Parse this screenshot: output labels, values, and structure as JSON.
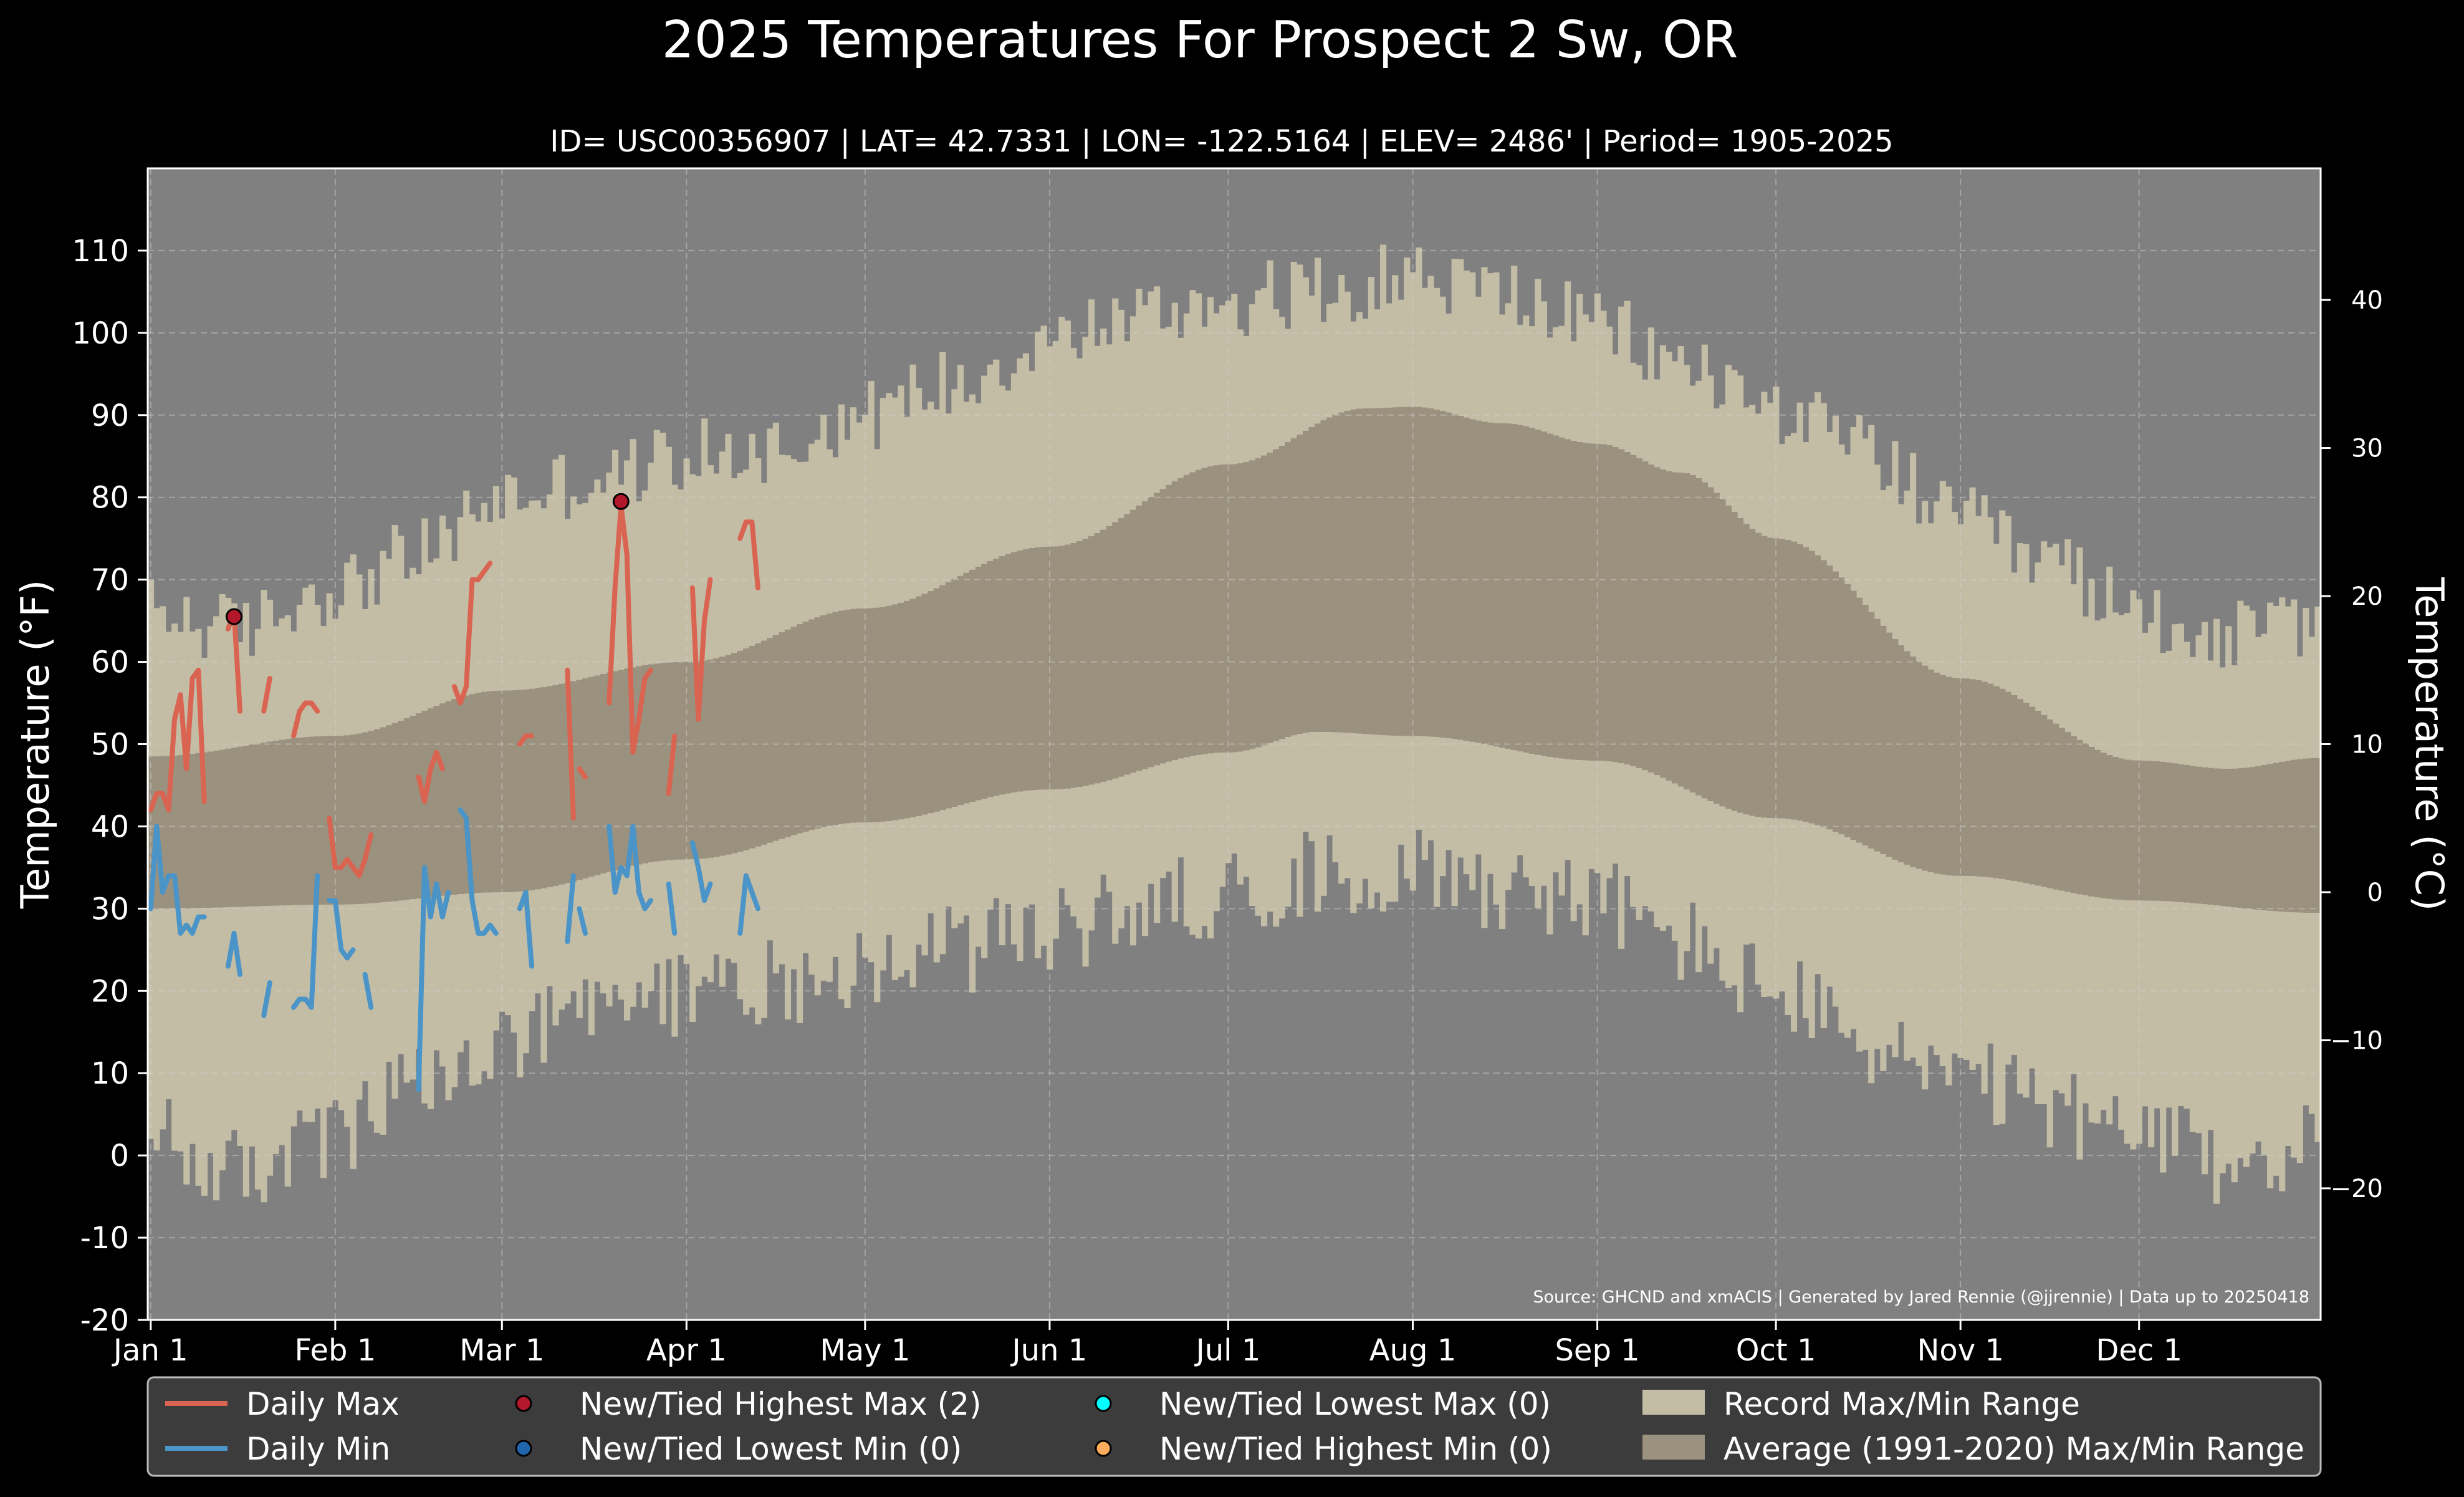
{
  "chart_data": {
    "type": "line",
    "title": "2025 Temperatures For Prospect 2 Sw, OR",
    "subtitle": "ID= USC00356907 | LAT= 42.7331 | LON= -122.5164 | ELEV= 2486' | Period= 1905-2025",
    "ylabel": "Temperature ($^\\circ$F)",
    "ylabel_display": "Temperature (°F)",
    "ylabel_right": "Temperature (°C)",
    "ylim": [
      -20,
      120
    ],
    "y_ticks": [
      -20,
      -10,
      0,
      10,
      20,
      30,
      40,
      50,
      60,
      70,
      80,
      90,
      100,
      110
    ],
    "y_ticks_right": [
      -20,
      -10,
      0,
      10,
      20,
      30,
      40
    ],
    "xlim_days": [
      0.5,
      365.5
    ],
    "x_ticks": [
      {
        "label": "Jan 1",
        "day": 1
      },
      {
        "label": "Feb 1",
        "day": 32
      },
      {
        "label": "Mar 1",
        "day": 60
      },
      {
        "label": "Apr 1",
        "day": 91
      },
      {
        "label": "May 1",
        "day": 121
      },
      {
        "label": "Jun 1",
        "day": 152
      },
      {
        "label": "Jul 1",
        "day": 182
      },
      {
        "label": "Aug 1",
        "day": 213
      },
      {
        "label": "Sep 1",
        "day": 244
      },
      {
        "label": "Oct 1",
        "day": 274
      },
      {
        "label": "Nov 1",
        "day": 305
      },
      {
        "label": "Dec 1",
        "day": 335
      }
    ],
    "grid": true,
    "source_text": "Source: GHCND and xmACIS | Generated by Jared Rennie (@jjrennie) | Data up to 20250418",
    "legend_position": "bottom",
    "colors": {
      "background": "#000000",
      "plot_background": "#808080",
      "record_range": "#c4bda6",
      "average_range": "#9b917f",
      "daily_max": "#d96452",
      "daily_min": "#4a94c8",
      "record_high_max": "#b3182a",
      "record_low_min": "#2166ac",
      "record_low_max": "#00ffff",
      "record_high_min": "#ffad5c",
      "legend_bg": "#3c3c3c"
    },
    "legend": [
      {
        "label": "Daily Max",
        "kind": "line",
        "color": "#d96452"
      },
      {
        "label": "Daily Min",
        "kind": "line",
        "color": "#4a94c8"
      },
      {
        "label": "New/Tied Highest Max (2)",
        "kind": "dot",
        "color": "#b3182a"
      },
      {
        "label": "New/Tied Lowest Min (0)",
        "kind": "dot",
        "color": "#2166ac"
      },
      {
        "label": "New/Tied Lowest Max (0)",
        "kind": "dot",
        "color": "#00ffff"
      },
      {
        "label": "New/Tied Highest Min (0)",
        "kind": "dot",
        "color": "#ffad5c"
      },
      {
        "label": "Record Max/Min Range",
        "kind": "patch",
        "color": "#c4bda6"
      },
      {
        "label": "Average (1991-2020) Max/Min Range",
        "kind": "patch",
        "color": "#9b917f"
      }
    ],
    "record_max_anchors": [
      [
        1,
        66
      ],
      [
        15,
        64
      ],
      [
        32,
        69
      ],
      [
        46,
        73
      ],
      [
        60,
        80
      ],
      [
        75,
        82
      ],
      [
        91,
        85
      ],
      [
        105,
        86
      ],
      [
        121,
        90
      ],
      [
        135,
        94
      ],
      [
        152,
        99
      ],
      [
        166,
        102
      ],
      [
        182,
        104
      ],
      [
        196,
        105
      ],
      [
        213,
        107
      ],
      [
        227,
        105
      ],
      [
        244,
        101
      ],
      [
        258,
        96
      ],
      [
        274,
        91
      ],
      [
        288,
        86
      ],
      [
        305,
        77
      ],
      [
        319,
        72
      ],
      [
        335,
        66
      ],
      [
        350,
        63
      ],
      [
        365,
        65
      ]
    ],
    "record_min_anchors": [
      [
        1,
        2
      ],
      [
        15,
        -2
      ],
      [
        32,
        2
      ],
      [
        46,
        8
      ],
      [
        60,
        13
      ],
      [
        75,
        17
      ],
      [
        91,
        20
      ],
      [
        105,
        21
      ],
      [
        121,
        23
      ],
      [
        135,
        25
      ],
      [
        152,
        27
      ],
      [
        166,
        30
      ],
      [
        182,
        32
      ],
      [
        196,
        34
      ],
      [
        213,
        35
      ],
      [
        227,
        33
      ],
      [
        244,
        31
      ],
      [
        258,
        26
      ],
      [
        274,
        20
      ],
      [
        288,
        14
      ],
      [
        305,
        9
      ],
      [
        319,
        6
      ],
      [
        335,
        2
      ],
      [
        350,
        -1
      ],
      [
        365,
        1
      ]
    ],
    "average_max": [
      [
        1,
        48.5
      ],
      [
        32,
        51
      ],
      [
        60,
        56.5
      ],
      [
        91,
        60
      ],
      [
        121,
        66.5
      ],
      [
        152,
        74
      ],
      [
        182,
        84
      ],
      [
        205,
        90.8
      ],
      [
        213,
        91
      ],
      [
        228,
        89
      ],
      [
        244,
        86.5
      ],
      [
        258,
        83
      ],
      [
        274,
        75
      ],
      [
        305,
        58
      ],
      [
        335,
        48
      ],
      [
        350,
        47
      ],
      [
        365,
        48.3
      ]
    ],
    "average_min": [
      [
        1,
        30
      ],
      [
        32,
        30.5
      ],
      [
        60,
        32
      ],
      [
        91,
        36
      ],
      [
        121,
        40.5
      ],
      [
        152,
        44.5
      ],
      [
        182,
        49
      ],
      [
        197,
        51.5
      ],
      [
        213,
        51
      ],
      [
        244,
        48
      ],
      [
        274,
        41
      ],
      [
        305,
        34
      ],
      [
        335,
        31
      ],
      [
        365,
        29.5
      ]
    ],
    "daily_max": [
      [
        [
          1,
          42
        ],
        [
          2,
          44
        ],
        [
          3,
          44
        ],
        [
          4,
          42
        ],
        [
          5,
          53
        ],
        [
          6,
          56
        ],
        [
          7,
          47
        ],
        [
          8,
          58
        ],
        [
          9,
          59
        ],
        [
          10,
          43
        ]
      ],
      [
        [
          14,
          64
        ],
        [
          15,
          66
        ],
        [
          16,
          54
        ]
      ],
      [
        [
          20,
          54
        ],
        [
          21,
          58
        ]
      ],
      [
        [
          25,
          51
        ],
        [
          26,
          54
        ],
        [
          27,
          55
        ],
        [
          28,
          55
        ],
        [
          29,
          54
        ]
      ],
      [
        [
          31,
          41
        ],
        [
          32,
          35
        ],
        [
          33,
          35
        ],
        [
          34,
          36
        ],
        [
          35,
          35
        ],
        [
          36,
          34
        ],
        [
          37,
          36
        ],
        [
          38,
          39
        ]
      ],
      [
        [
          46,
          46
        ],
        [
          47,
          43
        ],
        [
          48,
          47
        ],
        [
          49,
          49
        ],
        [
          50,
          47
        ]
      ],
      [
        [
          52,
          57
        ],
        [
          53,
          55
        ],
        [
          54,
          57
        ],
        [
          55,
          70
        ],
        [
          56,
          70
        ],
        [
          57,
          71
        ],
        [
          58,
          72
        ]
      ],
      [
        [
          63,
          50
        ],
        [
          64,
          51
        ],
        [
          65,
          51
        ]
      ],
      [
        [
          71,
          59
        ],
        [
          72,
          41
        ]
      ],
      [
        [
          73,
          47
        ],
        [
          74,
          46
        ]
      ],
      [
        [
          78,
          55
        ],
        [
          79,
          69
        ],
        [
          80,
          79
        ],
        [
          81,
          73
        ],
        [
          82,
          49
        ],
        [
          83,
          53
        ],
        [
          84,
          58
        ],
        [
          85,
          59
        ]
      ],
      [
        [
          88,
          44
        ],
        [
          89,
          51
        ]
      ],
      [
        [
          92,
          69
        ],
        [
          93,
          53
        ],
        [
          94,
          65
        ],
        [
          95,
          70
        ]
      ],
      [
        [
          100,
          75
        ],
        [
          101,
          77
        ],
        [
          102,
          77
        ],
        [
          103,
          69
        ]
      ]
    ],
    "daily_min": [
      [
        [
          1,
          30
        ],
        [
          2,
          40
        ],
        [
          3,
          32
        ],
        [
          4,
          34
        ],
        [
          5,
          34
        ],
        [
          6,
          27
        ],
        [
          7,
          28
        ],
        [
          8,
          27
        ],
        [
          9,
          29
        ],
        [
          10,
          29
        ]
      ],
      [
        [
          14,
          23
        ],
        [
          15,
          27
        ],
        [
          16,
          22
        ]
      ],
      [
        [
          20,
          17
        ],
        [
          21,
          21
        ]
      ],
      [
        [
          25,
          18
        ],
        [
          26,
          19
        ],
        [
          27,
          19
        ],
        [
          28,
          18
        ],
        [
          29,
          34
        ]
      ],
      [
        [
          31,
          31
        ],
        [
          32,
          31
        ],
        [
          33,
          25
        ],
        [
          34,
          24
        ],
        [
          35,
          25
        ]
      ],
      [
        [
          37,
          22
        ],
        [
          38,
          18
        ]
      ],
      [
        [
          46,
          8
        ],
        [
          47,
          35
        ],
        [
          48,
          29
        ],
        [
          49,
          33
        ],
        [
          50,
          29
        ],
        [
          51,
          32
        ]
      ],
      [
        [
          53,
          42
        ],
        [
          54,
          41
        ],
        [
          55,
          31
        ],
        [
          56,
          27
        ],
        [
          57,
          27
        ],
        [
          58,
          28
        ],
        [
          59,
          27
        ]
      ],
      [
        [
          63,
          30
        ],
        [
          64,
          32
        ],
        [
          65,
          23
        ]
      ],
      [
        [
          71,
          26
        ],
        [
          72,
          34
        ]
      ],
      [
        [
          73,
          30
        ],
        [
          74,
          27
        ]
      ],
      [
        [
          78,
          40
        ],
        [
          79,
          32
        ],
        [
          80,
          35
        ],
        [
          81,
          34
        ],
        [
          82,
          40
        ],
        [
          83,
          32
        ],
        [
          84,
          30
        ],
        [
          85,
          31
        ]
      ],
      [
        [
          88,
          33
        ],
        [
          89,
          27
        ]
      ],
      [
        [
          92,
          38
        ],
        [
          93,
          35
        ],
        [
          94,
          31
        ],
        [
          95,
          33
        ]
      ],
      [
        [
          100,
          27
        ],
        [
          101,
          34
        ],
        [
          103,
          30
        ]
      ]
    ],
    "record_high_max_points": [
      [
        15,
        65.5
      ],
      [
        80,
        79.5
      ]
    ]
  }
}
